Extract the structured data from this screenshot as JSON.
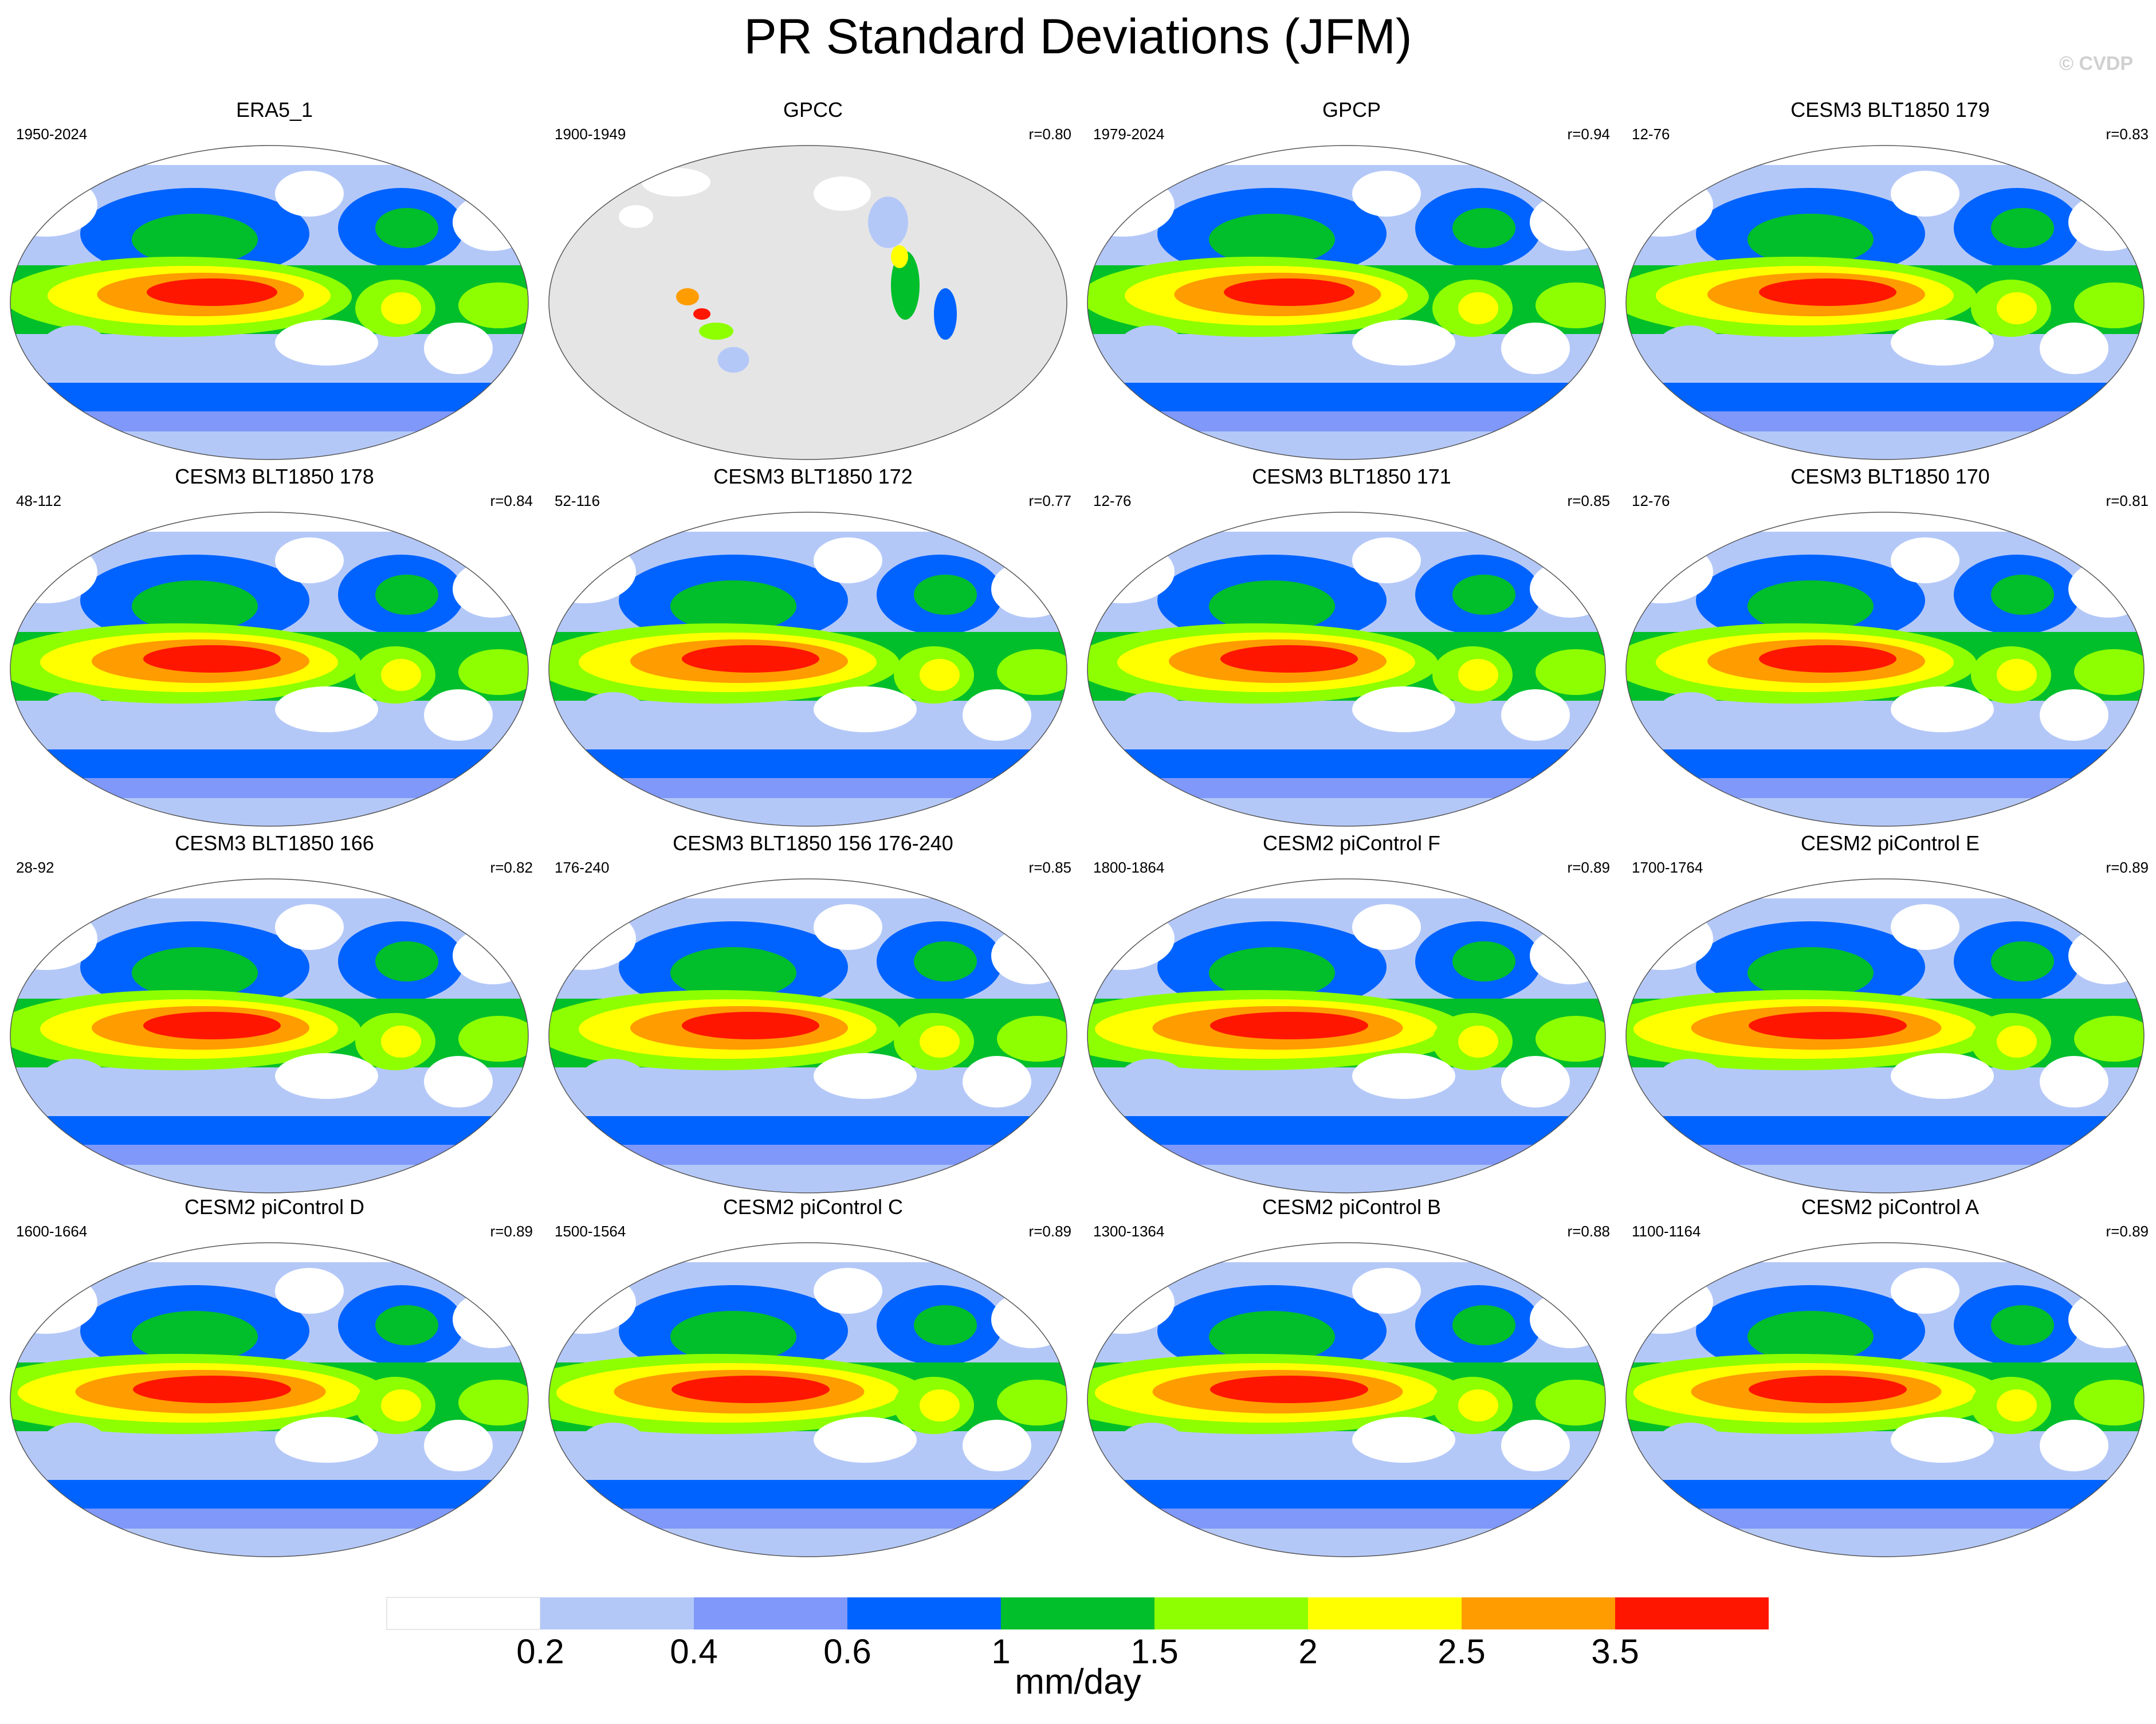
{
  "title": "PR Standard Deviations (JFM)",
  "copyright": "© CVDP",
  "colors": {
    "levels": [
      "#ffffff",
      "#b4c8f8",
      "#7f98fa",
      "#0063ff",
      "#00bf2a",
      "#8eff00",
      "#ffff00",
      "#ff9c00",
      "#ff1600"
    ],
    "land_missing": "#e5e5e5",
    "coast": "#888888"
  },
  "colorbar": {
    "ticks": [
      "0.2",
      "0.4",
      "0.6",
      "1",
      "1.5",
      "2",
      "2.5",
      "3.5"
    ],
    "units": "mm/day"
  },
  "panels": [
    {
      "title": "ERA5_1",
      "years": "1950-2024",
      "r": "",
      "style": "obs"
    },
    {
      "title": "GPCC",
      "years": "1900-1949",
      "r": "r=0.80",
      "style": "land"
    },
    {
      "title": "GPCP",
      "years": "1979-2024",
      "r": "r=0.94",
      "style": "obs"
    },
    {
      "title": "CESM3 BLT1850 179",
      "years": "12-76",
      "r": "r=0.83",
      "style": "model"
    },
    {
      "title": "CESM3 BLT1850 178",
      "years": "48-112",
      "r": "r=0.84",
      "style": "model"
    },
    {
      "title": "CESM3 BLT1850 172",
      "years": "52-116",
      "r": "r=0.77",
      "style": "model"
    },
    {
      "title": "CESM3 BLT1850 171",
      "years": "12-76",
      "r": "r=0.85",
      "style": "model"
    },
    {
      "title": "CESM3 BLT1850 170",
      "years": "12-76",
      "r": "r=0.81",
      "style": "model"
    },
    {
      "title": "CESM3 BLT1850 166",
      "years": "28-92",
      "r": "r=0.82",
      "style": "model"
    },
    {
      "title": "CESM3 BLT1850 156 176-240",
      "years": "176-240",
      "r": "r=0.85",
      "style": "model"
    },
    {
      "title": "CESM2 piControl F",
      "years": "1800-1864",
      "r": "r=0.89",
      "style": "strong"
    },
    {
      "title": "CESM2 piControl E",
      "years": "1700-1764",
      "r": "r=0.89",
      "style": "strong"
    },
    {
      "title": "CESM2 piControl D",
      "years": "1600-1664",
      "r": "r=0.89",
      "style": "strong"
    },
    {
      "title": "CESM2 piControl C",
      "years": "1500-1564",
      "r": "r=0.89",
      "style": "strong"
    },
    {
      "title": "CESM2 piControl B",
      "years": "1300-1364",
      "r": "r=0.88",
      "style": "strong"
    },
    {
      "title": "CESM2 piControl A",
      "years": "1100-1164",
      "r": "r=0.89",
      "style": "strong"
    }
  ]
}
